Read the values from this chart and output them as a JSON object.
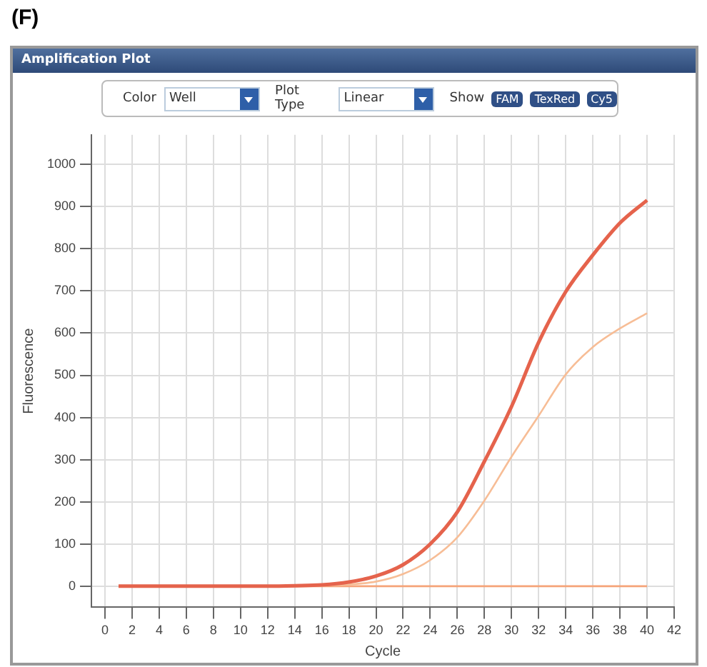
{
  "chart_data": {
    "type": "line",
    "title": "(F)",
    "subtitle": "Amplification Plot",
    "xlabel": "Cycle",
    "ylabel": "Fluorescence",
    "annotations": [
      "Color",
      "Well",
      "Plot Type",
      "Linear",
      "Show",
      "FAM",
      "TexRed",
      "Cy5"
    ],
    "series": [
      {
        "color": "#e5634c",
        "x": [
          1,
          4,
          8,
          12,
          14,
          16,
          18,
          20,
          22,
          24,
          26,
          28,
          30,
          32,
          34,
          36,
          38,
          40
        ],
        "values": [
          0,
          0,
          0,
          0,
          1,
          3,
          10,
          24,
          51,
          100,
          176,
          296,
          426,
          578,
          698,
          785,
          861,
          915
        ]
      },
      {
        "color": "#f7bd96",
        "x": [
          1,
          4,
          8,
          12,
          14,
          16,
          18,
          20,
          22,
          24,
          26,
          28,
          30,
          32,
          34,
          36,
          38,
          40
        ],
        "values": [
          0,
          0,
          0,
          0,
          0,
          1,
          4,
          11,
          29,
          62,
          116,
          203,
          307,
          404,
          502,
          567,
          611,
          647
        ]
      },
      {
        "color": "#f5a47a",
        "x": [
          1,
          10,
          20,
          30,
          40
        ],
        "values": [
          0,
          0,
          0,
          0,
          0
        ]
      }
    ],
    "xlim": [
      -1,
      42
    ],
    "xticks": [
      0,
      2,
      4,
      6,
      8,
      10,
      12,
      14,
      16,
      18,
      20,
      22,
      24,
      26,
      28,
      30,
      32,
      34,
      36,
      38,
      40,
      42
    ],
    "ylim": [
      -50,
      1070
    ],
    "yticks": [
      0,
      100,
      200,
      300,
      400,
      500,
      600,
      700,
      800,
      900,
      1000
    ],
    "grid": true,
    "legend": false,
    "marker": "none",
    "line_style": "solid"
  }
}
